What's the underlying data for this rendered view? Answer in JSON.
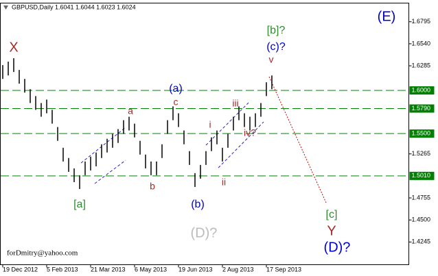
{
  "chart_data": {
    "type": "range",
    "header": "GBPUSD,Daily  1.6041 1.6044 1.6023 1.6024",
    "categories": [
      "19 Dec 2012",
      null,
      null,
      null,
      null,
      null,
      null,
      null,
      "5 Feb 2013",
      null,
      null,
      null,
      null,
      null,
      null,
      null,
      "21 Mar 2013",
      null,
      null,
      null,
      null,
      null,
      null,
      null,
      "6 May 2013",
      null,
      null,
      null,
      null,
      null,
      null,
      null,
      "19 Jun 2013",
      null,
      null,
      null,
      null,
      null,
      null,
      null,
      "2 Aug 2013",
      null,
      null,
      null,
      null,
      null,
      null,
      null,
      "17 Sep 2013",
      null
    ],
    "high": [
      1.6293,
      1.6333,
      1.6373,
      1.6237,
      1.6133,
      1.6014,
      1.5934,
      1.5854,
      1.5894,
      1.5775,
      1.5576,
      1.5336,
      1.5217,
      1.5097,
      1.5018,
      1.5177,
      1.5233,
      1.5281,
      1.5376,
      1.544,
      1.5496,
      1.5552,
      1.5655,
      1.5695,
      1.5615,
      1.5416,
      1.5257,
      1.5177,
      1.5177,
      1.5376,
      1.5655,
      1.5815,
      1.5735,
      1.5536,
      1.5297,
      1.5042,
      1.5137,
      1.5297,
      1.5456,
      1.5536,
      1.5336,
      1.5496,
      1.5695,
      1.5815,
      1.5735,
      1.5695,
      1.5735,
      1.5854,
      1.6094,
      1.6173
    ],
    "low": [
      1.6133,
      1.6173,
      1.6213,
      1.6078,
      1.5974,
      1.5854,
      1.5775,
      1.5695,
      1.5735,
      1.5615,
      1.5416,
      1.5177,
      1.5057,
      1.4938,
      1.4858,
      1.5018,
      1.5073,
      1.5121,
      1.5217,
      1.5281,
      1.5336,
      1.5392,
      1.5496,
      1.5536,
      1.5456,
      1.5257,
      1.5097,
      1.5018,
      1.5018,
      1.5217,
      1.5496,
      1.5655,
      1.5576,
      1.5376,
      1.5137,
      1.4882,
      1.4978,
      1.5137,
      1.5297,
      1.5376,
      1.5177,
      1.5336,
      1.5536,
      1.5655,
      1.5576,
      1.5536,
      1.5576,
      1.5695,
      1.5934,
      1.6014
    ],
    "color": "#000000",
    "ylim": [
      1.3982,
      1.7011
    ],
    "yticks": [
      1.6795,
      {
        "value": 1.654,
        "label": "1.6540"
      },
      1.6285,
      1.5265,
      1.4755,
      {
        "value": 1.45,
        "label": "1.4500"
      },
      1.4245
    ],
    "levels": [
      {
        "value": 1.6,
        "label": "1.6000"
      },
      {
        "value": 1.579,
        "label": "1.5790"
      },
      {
        "value": 1.55,
        "label": "1.5500"
      },
      {
        "value": 1.501,
        "label": "1.5010"
      }
    ],
    "level_color": "#008000",
    "annotations": [
      {
        "text": "(E)",
        "color": "#0000cc"
      },
      {
        "text": "[b]?",
        "color": "#2e8b2e"
      },
      {
        "text": "(c)?",
        "color": "#0000cc"
      },
      {
        "text": "v",
        "color": "#a52a2a"
      },
      {
        "text": "X",
        "color": "#a52a2a"
      },
      {
        "text": "(a)",
        "color": "#0000cc"
      },
      {
        "text": "c",
        "color": "#a52a2a"
      },
      {
        "text": "a",
        "color": "#a52a2a"
      },
      {
        "text": "iii",
        "color": "#a52a2a"
      },
      {
        "text": "i",
        "color": "#a52a2a"
      },
      {
        "text": "iv?",
        "color": "#a52a2a"
      },
      {
        "text": "ii",
        "color": "#a52a2a"
      },
      {
        "text": "b",
        "color": "#a52a2a"
      },
      {
        "text": "[a]",
        "color": "#2e8b2e"
      },
      {
        "text": "(b)",
        "color": "#0000cc"
      },
      {
        "text": "[c]",
        "color": "#2e8b2e"
      },
      {
        "text": "Y",
        "color": "#a52a2a"
      },
      {
        "text": "(D)?",
        "color": "#0000cc"
      },
      {
        "text": "(D)?",
        "color": "#bbbbbb"
      },
      {
        "text": "forDmitry@yahoo.com",
        "color": "#000000"
      }
    ]
  }
}
